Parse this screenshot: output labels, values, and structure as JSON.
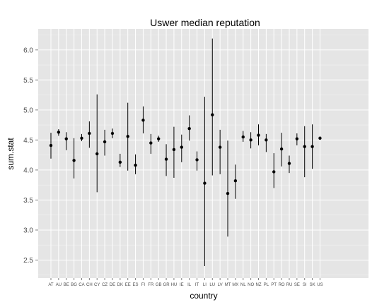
{
  "chart_data": {
    "type": "scatter",
    "title": "Uswer median reputation",
    "xlabel": "country",
    "ylabel": "sum.stat",
    "ylim": [
      2.2,
      6.35
    ],
    "yticks": [
      "2.5",
      "3.0",
      "3.5",
      "4.0",
      "4.5",
      "5.0",
      "5.5",
      "6.0"
    ],
    "grid": true,
    "legend": "none",
    "colors": {
      "panel": "#e5e5e5",
      "grid_major": "#ffffff",
      "grid_minor": "#f2f2f2",
      "mark": "#000000"
    },
    "categories": [
      "AT",
      "AU",
      "BE",
      "BG",
      "CA",
      "CH",
      "CY",
      "CZ",
      "DE",
      "DK",
      "EE",
      "ES",
      "FI",
      "FR",
      "GB",
      "GR",
      "HU",
      "IE",
      "IL",
      "IT",
      "LI",
      "LU",
      "LV",
      "MT",
      "MX",
      "NL",
      "NO",
      "NZ",
      "PL",
      "PT",
      "RO",
      "RU",
      "SE",
      "SI",
      "SK",
      "US"
    ],
    "series": [
      {
        "median": [
          4.41,
          4.63,
          4.52,
          4.16,
          4.53,
          4.61,
          4.27,
          4.47,
          4.61,
          4.13,
          4.56,
          4.08,
          4.83,
          4.45,
          4.52,
          4.18,
          4.34,
          4.38,
          4.69,
          4.17,
          3.78,
          4.92,
          4.38,
          3.61,
          3.82,
          4.55,
          4.5,
          4.58,
          4.5,
          3.97,
          4.35,
          4.11,
          4.52,
          4.39,
          4.39,
          4.53
        ],
        "low": [
          4.19,
          4.57,
          4.33,
          3.86,
          4.48,
          4.37,
          3.63,
          4.24,
          4.53,
          4.05,
          3.99,
          3.93,
          4.61,
          4.27,
          4.47,
          3.9,
          3.87,
          4.13,
          4.49,
          3.99,
          2.4,
          3.91,
          3.93,
          2.89,
          3.52,
          4.47,
          4.36,
          4.41,
          4.3,
          3.7,
          4.06,
          3.95,
          4.41,
          3.88,
          4.02,
          4.51
        ],
        "high": [
          4.62,
          4.68,
          4.63,
          4.53,
          4.6,
          4.81,
          5.26,
          4.67,
          4.69,
          4.27,
          5.12,
          4.26,
          5.06,
          4.6,
          4.57,
          4.43,
          4.72,
          4.59,
          4.91,
          4.31,
          5.22,
          6.19,
          4.67,
          4.49,
          4.09,
          4.65,
          4.63,
          4.76,
          4.6,
          4.28,
          4.62,
          4.24,
          4.61,
          4.73,
          4.76,
          4.56
        ]
      }
    ]
  }
}
